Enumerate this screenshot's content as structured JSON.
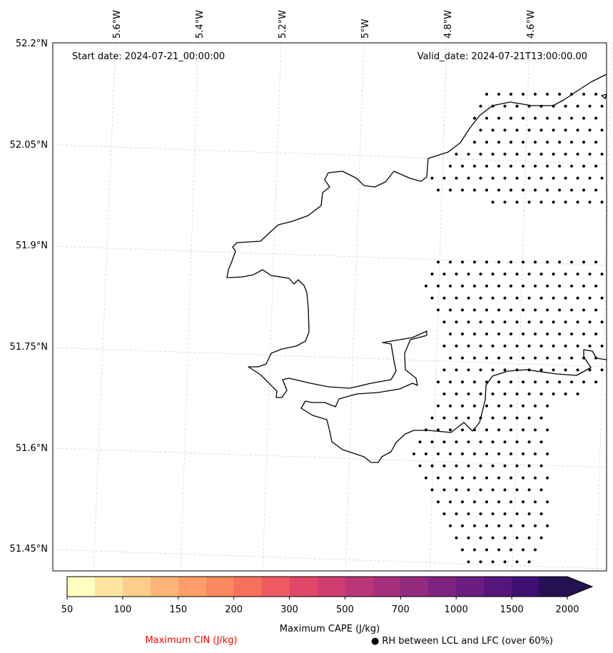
{
  "map": {
    "start_date": "Start date: 2024-07-21_00:00:00",
    "valid_date": "Valid_date: 2024-07-21T13:00:00.00",
    "lon_labels": [
      "5.6°W",
      "5.4°W",
      "5.2°W",
      "5°W",
      "4.8°W",
      "4.6°W"
    ],
    "lat_labels": [
      "52.2°N",
      "52.05°N",
      "51.9°N",
      "51.75°N",
      "51.6°N",
      "51.45°N"
    ]
  },
  "colorbar": {
    "title": "Maximum CAPE (J/kg)",
    "tick_labels": [
      "50",
      "100",
      "150",
      "200",
      "300",
      "500",
      "700",
      "1000",
      "1500",
      "2000"
    ],
    "colors": [
      "#fffdbf",
      "#fee5a0",
      "#fecd8a",
      "#feb678",
      "#fd9e68",
      "#fb875e",
      "#f7705c",
      "#ef5960",
      "#e14867",
      "#ce3d70",
      "#ba3677",
      "#a52f7b",
      "#922a7e",
      "#7e227f",
      "#6a1c80",
      "#56147d",
      "#3d0f71",
      "#231151"
    ]
  },
  "legend": {
    "cin_label": "Maximum CIN (J/kg)",
    "cin_color": "#ff0000",
    "rh_marker": "●",
    "rh_label": "RH between LCL and LFC (over 60%)"
  }
}
